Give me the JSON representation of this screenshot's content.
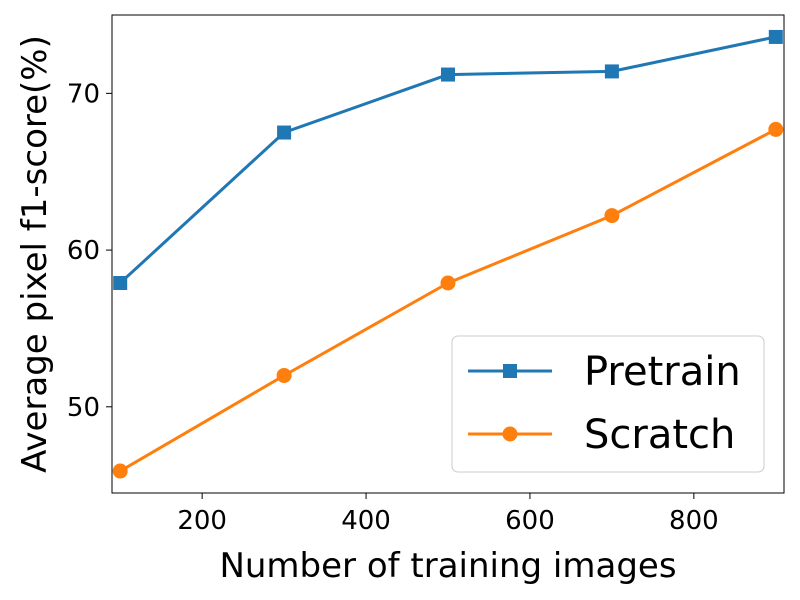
{
  "chart_data": {
    "type": "line",
    "xlabel": "Number of training images",
    "ylabel": "Average pixel f1-score(%)",
    "xlim": [
      90,
      910
    ],
    "ylim": [
      44.5,
      75
    ],
    "xticks": [
      200,
      400,
      600,
      800
    ],
    "yticks": [
      50,
      60,
      70
    ],
    "grid": false,
    "legend_position": "lower-right",
    "series": [
      {
        "name": "Pretrain",
        "color": "#1f77b4",
        "marker": "square",
        "x": [
          100,
          300,
          500,
          700,
          900
        ],
        "y": [
          57.9,
          67.5,
          71.2,
          71.4,
          73.6
        ]
      },
      {
        "name": "Scratch",
        "color": "#ff7f0e",
        "marker": "circle",
        "x": [
          100,
          300,
          500,
          700,
          900
        ],
        "y": [
          45.9,
          52.0,
          57.9,
          62.2,
          67.7
        ]
      }
    ]
  }
}
